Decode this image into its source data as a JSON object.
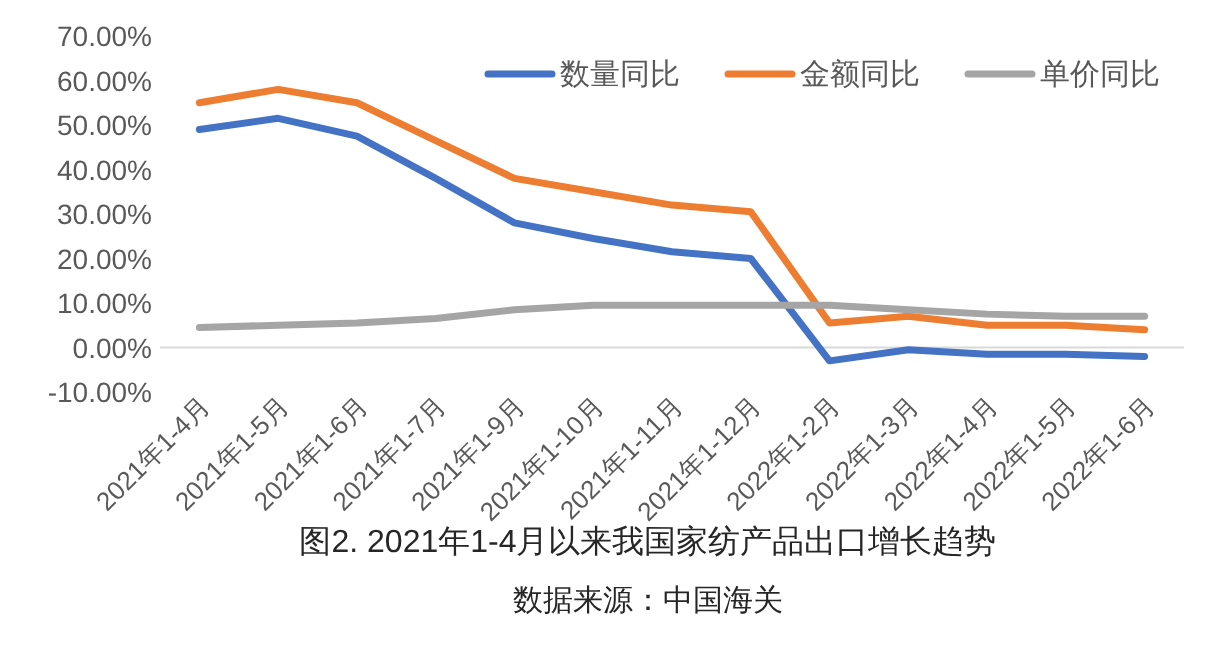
{
  "chart_data": {
    "type": "line",
    "title": "图2. 2021年1-4月以来我国家纺产品出口增长趋势",
    "annotations": [
      "数据来源：中国海关"
    ],
    "categories": [
      "2021年1-4月",
      "2021年1-5月",
      "2021年1-6月",
      "2021年1-7月",
      "2021年1-9月",
      "2021年1-10月",
      "2021年1-11月",
      "2021年1-12月",
      "2022年1-2月",
      "2022年1-3月",
      "2022年1-4月",
      "2022年1-5月",
      "2022年1-6月"
    ],
    "series": [
      {
        "name": "数量同比",
        "color": "#4472c4",
        "values": [
          49,
          51.5,
          47.5,
          38,
          28,
          24.5,
          21.5,
          20,
          -3,
          -0.5,
          -1.5,
          -1.5,
          -2
        ]
      },
      {
        "name": "金额同比",
        "color": "#ed7d31",
        "values": [
          55,
          58,
          55,
          46.5,
          38,
          35,
          32,
          30.5,
          5.5,
          7,
          5,
          5,
          4
        ]
      },
      {
        "name": "单价同比",
        "color": "#a5a5a5",
        "values": [
          4.5,
          5,
          5.5,
          6.5,
          8.5,
          9.5,
          9.5,
          9.5,
          9.5,
          8.5,
          7.5,
          7,
          7
        ]
      }
    ],
    "ylim": [
      -10,
      70
    ],
    "yticks": [
      {
        "value": -10,
        "label": "-10.00%"
      },
      {
        "value": 0,
        "label": "0.00%"
      },
      {
        "value": 10,
        "label": "10.00%"
      },
      {
        "value": 20,
        "label": "20.00%"
      },
      {
        "value": 30,
        "label": "30.00%"
      },
      {
        "value": 40,
        "label": "40.00%"
      },
      {
        "value": 50,
        "label": "50.00%"
      },
      {
        "value": 60,
        "label": "60.00%"
      },
      {
        "value": 70,
        "label": "70.00%"
      }
    ],
    "legend": "top right",
    "marker": "none",
    "line_style": "solid"
  }
}
